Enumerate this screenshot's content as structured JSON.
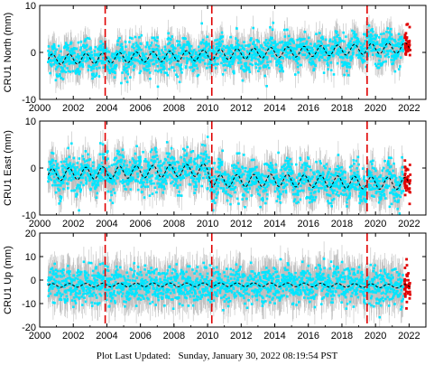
{
  "footer": {
    "label": "Plot Last Updated:",
    "value": "Sunday, January 30, 2022 08:19:54 PST"
  },
  "colors": {
    "error_bar": "#a9a9a9",
    "observation": "#00e5ff",
    "model": "#000000",
    "recent": "#e00000",
    "event_line": "#e00000"
  },
  "chart_data": [
    {
      "type": "scatter",
      "ylabel": "CRU1 North (mm)",
      "xlim": [
        2000,
        2023
      ],
      "ylim": [
        -10,
        10
      ],
      "xticks": [
        2000,
        2002,
        2004,
        2006,
        2008,
        2010,
        2012,
        2014,
        2016,
        2018,
        2020,
        2022
      ],
      "yticks": [
        -10,
        0,
        10
      ],
      "data_span": [
        2000.5,
        2022.08
      ],
      "event_lines": [
        2003.9,
        2010.25,
        2019.5
      ],
      "series": [
        {
          "role": "model",
          "style": "dashed",
          "x": [
            2000.5,
            2002.0,
            2004.0,
            2006.0,
            2008.0,
            2010.0,
            2012.0,
            2014.0,
            2016.0,
            2018.0,
            2020.0,
            2022.0
          ],
          "y": [
            -1.5,
            -1.4,
            -1.2,
            -1.0,
            -0.8,
            -0.6,
            -0.3,
            0.0,
            0.2,
            0.5,
            0.8,
            1.0
          ],
          "seasonal_amplitude": 1.1
        },
        {
          "role": "observations",
          "scatter_sd": 1.8,
          "error_bar_halfwidth": 2.4
        }
      ]
    },
    {
      "type": "scatter",
      "ylabel": "CRU1 East (mm)",
      "xlim": [
        2000,
        2023
      ],
      "ylim": [
        -10,
        10
      ],
      "xticks": [
        2000,
        2002,
        2004,
        2006,
        2008,
        2010,
        2012,
        2014,
        2016,
        2018,
        2020,
        2022
      ],
      "yticks": [
        -10,
        0,
        10
      ],
      "data_span": [
        2000.5,
        2022.08
      ],
      "event_lines": [
        2003.9,
        2010.25,
        2019.5
      ],
      "series": [
        {
          "role": "model",
          "style": "dashed",
          "x": [
            2000.5,
            2002.0,
            2004.0,
            2006.0,
            2008.0,
            2010.0,
            2010.3,
            2012.0,
            2014.0,
            2016.0,
            2018.0,
            2020.0,
            2022.0
          ],
          "y": [
            -1.5,
            -1.2,
            -1.0,
            -0.8,
            -0.6,
            -0.4,
            -2.8,
            -2.7,
            -2.6,
            -2.8,
            -3.0,
            -3.2,
            -3.3
          ],
          "seasonal_amplitude": 1.3
        },
        {
          "role": "observations",
          "scatter_sd": 2.0,
          "error_bar_halfwidth": 2.6
        }
      ]
    },
    {
      "type": "scatter",
      "ylabel": "CRU1 Up (mm)",
      "xlim": [
        2000,
        2023
      ],
      "ylim": [
        -20,
        20
      ],
      "xticks": [
        2000,
        2002,
        2004,
        2006,
        2008,
        2010,
        2012,
        2014,
        2016,
        2018,
        2020,
        2022
      ],
      "yticks": [
        -20,
        -10,
        0,
        10,
        20
      ],
      "data_span": [
        2000.5,
        2022.08
      ],
      "event_lines": [
        2003.9,
        2010.25,
        2019.5
      ],
      "series": [
        {
          "role": "model",
          "style": "dashed",
          "x": [
            2000.5,
            2005.0,
            2010.0,
            2015.0,
            2020.0,
            2022.0
          ],
          "y": [
            -2.3,
            -2.1,
            -2.0,
            -2.0,
            -2.4,
            -2.7
          ],
          "seasonal_amplitude": 0.8
        },
        {
          "role": "observations",
          "scatter_sd": 3.8,
          "error_bar_halfwidth": 6.5
        }
      ]
    }
  ]
}
